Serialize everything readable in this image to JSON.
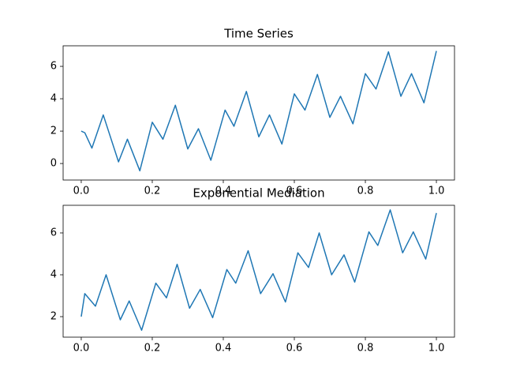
{
  "chart_data": [
    {
      "type": "line",
      "title": "Time Series",
      "x": [
        0,
        0.01,
        0.03,
        0.062,
        0.105,
        0.13,
        0.165,
        0.2,
        0.23,
        0.265,
        0.3,
        0.33,
        0.365,
        0.405,
        0.43,
        0.465,
        0.5,
        0.53,
        0.565,
        0.6,
        0.63,
        0.665,
        0.7,
        0.73,
        0.765,
        0.8,
        0.83,
        0.865,
        0.9,
        0.93,
        0.965,
        1.0
      ],
      "series": [
        {
          "color": "#1f77b4",
          "values": [
            2.0,
            1.9,
            0.95,
            3.0,
            0.1,
            1.5,
            -0.45,
            2.55,
            1.5,
            3.6,
            0.9,
            2.15,
            0.2,
            3.3,
            2.3,
            4.45,
            1.65,
            3.0,
            1.2,
            4.3,
            3.3,
            5.5,
            2.85,
            4.15,
            2.45,
            5.55,
            4.6,
            6.9,
            4.15,
            5.55,
            3.75,
            6.95
          ]
        }
      ],
      "xlim": [
        -0.051,
        1.051
      ],
      "ylim": [
        -1.02,
        7.27
      ],
      "xticks": [
        {
          "value": 0,
          "label": "0.0"
        },
        0.2,
        0.4,
        0.6,
        0.8,
        {
          "value": 1,
          "label": "1.0"
        }
      ],
      "yticks": [
        0,
        2,
        4,
        6
      ]
    },
    {
      "type": "line",
      "title": "Exponential Mediation",
      "x": [
        0,
        0.01,
        0.04,
        0.07,
        0.11,
        0.135,
        0.17,
        0.21,
        0.24,
        0.27,
        0.305,
        0.335,
        0.37,
        0.41,
        0.435,
        0.47,
        0.505,
        0.54,
        0.575,
        0.61,
        0.64,
        0.67,
        0.705,
        0.74,
        0.77,
        0.81,
        0.835,
        0.87,
        0.905,
        0.935,
        0.97,
        1.0
      ],
      "series": [
        {
          "color": "#1f77b4",
          "values": [
            2.0,
            3.1,
            2.5,
            4.0,
            1.85,
            2.75,
            1.35,
            3.6,
            2.9,
            4.5,
            2.4,
            3.3,
            1.95,
            4.25,
            3.6,
            5.15,
            3.1,
            4.05,
            2.7,
            5.05,
            4.35,
            6.0,
            4.0,
            4.95,
            3.65,
            6.05,
            5.4,
            7.1,
            5.05,
            6.05,
            4.75,
            6.95
          ]
        }
      ],
      "xlim": [
        -0.051,
        1.051
      ],
      "ylim": [
        1.02,
        7.32
      ],
      "xticks": [
        {
          "value": 0,
          "label": "0.0"
        },
        0.2,
        0.4,
        0.6,
        0.8,
        {
          "value": 1,
          "label": "1.0"
        }
      ],
      "yticks": [
        2,
        4,
        6
      ]
    }
  ]
}
